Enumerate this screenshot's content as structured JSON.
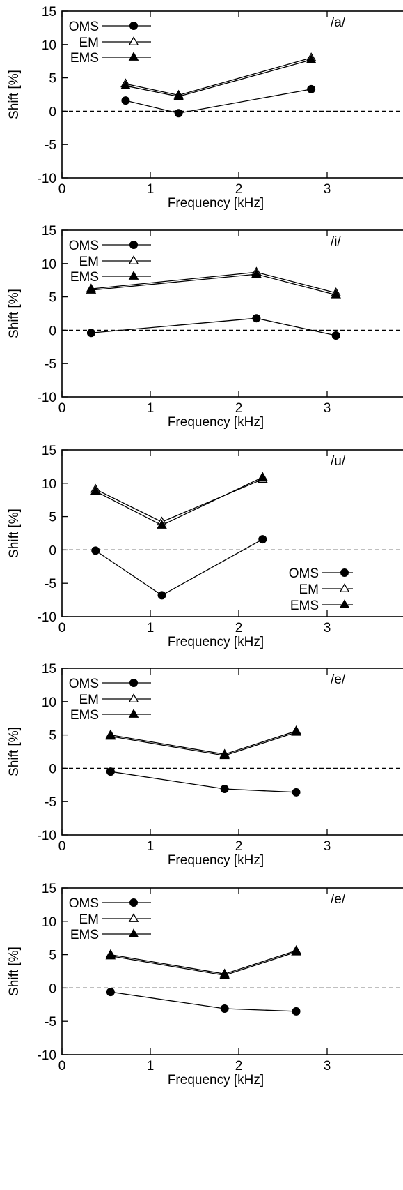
{
  "ylabel": "Shift [%]",
  "xlabel": "Frequency [kHz]",
  "legend_labels": [
    "OMS",
    "EM",
    "EMS"
  ],
  "chart_data": [
    {
      "type": "line",
      "panel_label": "/a/",
      "legend_position": "top-left",
      "xlabel": "Frequency [kHz]",
      "ylabel": "Shift [%]",
      "xlim": [
        0,
        3.3
      ],
      "ylim": [
        -10,
        15
      ],
      "xticks": [
        0,
        1,
        2,
        3
      ],
      "yticks": [
        -10,
        -5,
        0,
        5,
        10,
        15
      ],
      "zero_line": "dashed",
      "series": [
        {
          "name": "OMS",
          "marker": "filled-circle",
          "x": [
            0.72,
            1.32,
            2.82
          ],
          "y": [
            1.6,
            -0.3,
            3.3
          ]
        },
        {
          "name": "EM",
          "marker": "open-triangle",
          "x": [
            0.72,
            1.32,
            2.82
          ],
          "y": [
            4.1,
            2.4,
            8.0
          ]
        },
        {
          "name": "EMS",
          "marker": "filled-triangle",
          "x": [
            0.72,
            1.32,
            2.82
          ],
          "y": [
            3.8,
            2.2,
            7.7
          ]
        }
      ]
    },
    {
      "type": "line",
      "panel_label": "/i/",
      "legend_position": "top-left",
      "xlabel": "Frequency [kHz]",
      "ylabel": "Shift [%]",
      "xlim": [
        0,
        3.3
      ],
      "ylim": [
        -10,
        15
      ],
      "xticks": [
        0,
        1,
        2,
        3
      ],
      "yticks": [
        -10,
        -5,
        0,
        5,
        10,
        15
      ],
      "zero_line": "dashed",
      "series": [
        {
          "name": "OMS",
          "marker": "filled-circle",
          "x": [
            0.33,
            2.2,
            3.1
          ],
          "y": [
            -0.4,
            1.8,
            -0.8
          ]
        },
        {
          "name": "EM",
          "marker": "open-triangle",
          "x": [
            0.33,
            2.2,
            3.1
          ],
          "y": [
            6.2,
            8.7,
            5.6
          ]
        },
        {
          "name": "EMS",
          "marker": "filled-triangle",
          "x": [
            0.33,
            2.2,
            3.1
          ],
          "y": [
            6.0,
            8.4,
            5.3
          ]
        }
      ]
    },
    {
      "type": "line",
      "panel_label": "/u/",
      "legend_position": "bottom-right",
      "xlabel": "Frequency [kHz]",
      "ylabel": "Shift [%]",
      "xlim": [
        0,
        3.3
      ],
      "ylim": [
        -10,
        15
      ],
      "xticks": [
        0,
        1,
        2,
        3
      ],
      "yticks": [
        -10,
        -5,
        0,
        5,
        10,
        15
      ],
      "zero_line": "dashed",
      "series": [
        {
          "name": "OMS",
          "marker": "filled-circle",
          "x": [
            0.38,
            1.13,
            2.27
          ],
          "y": [
            -0.1,
            -6.8,
            1.6
          ]
        },
        {
          "name": "EM",
          "marker": "open-triangle",
          "x": [
            0.38,
            1.13,
            2.27
          ],
          "y": [
            9.1,
            4.2,
            10.6
          ]
        },
        {
          "name": "EMS",
          "marker": "filled-triangle",
          "x": [
            0.38,
            1.13,
            2.27
          ],
          "y": [
            8.8,
            3.7,
            10.9
          ]
        }
      ]
    },
    {
      "type": "line",
      "panel_label": "/e/",
      "legend_position": "top-left",
      "xlabel": "Frequency [kHz]",
      "ylabel": "Shift [%]",
      "xlim": [
        0,
        3.3
      ],
      "ylim": [
        -10,
        15
      ],
      "xticks": [
        0,
        1,
        2,
        3
      ],
      "yticks": [
        -10,
        -5,
        0,
        5,
        10,
        15
      ],
      "zero_line": "dashed",
      "series": [
        {
          "name": "OMS",
          "marker": "filled-circle",
          "x": [
            0.55,
            1.84,
            2.65
          ],
          "y": [
            -0.5,
            -3.1,
            -3.6
          ]
        },
        {
          "name": "EM",
          "marker": "open-triangle",
          "x": [
            0.55,
            1.84,
            2.65
          ],
          "y": [
            5.0,
            2.1,
            5.6
          ]
        },
        {
          "name": "EMS",
          "marker": "filled-triangle",
          "x": [
            0.55,
            1.84,
            2.65
          ],
          "y": [
            4.8,
            1.9,
            5.4
          ]
        }
      ]
    },
    {
      "type": "line",
      "panel_label": "/e/",
      "legend_position": "top-left",
      "xlabel": "Frequency [kHz]",
      "ylabel": "Shift [%]",
      "xlim": [
        0,
        3.3
      ],
      "ylim": [
        -10,
        15
      ],
      "xticks": [
        0,
        1,
        2,
        3
      ],
      "yticks": [
        -10,
        -5,
        0,
        5,
        10,
        15
      ],
      "zero_line": "dashed",
      "series": [
        {
          "name": "OMS",
          "marker": "filled-circle",
          "x": [
            0.55,
            1.84,
            2.65
          ],
          "y": [
            -0.6,
            -3.1,
            -3.5
          ]
        },
        {
          "name": "EM",
          "marker": "open-triangle",
          "x": [
            0.55,
            1.84,
            2.65
          ],
          "y": [
            5.0,
            2.1,
            5.6
          ]
        },
        {
          "name": "EMS",
          "marker": "filled-triangle",
          "x": [
            0.55,
            1.84,
            2.65
          ],
          "y": [
            4.8,
            1.9,
            5.4
          ]
        }
      ]
    }
  ]
}
